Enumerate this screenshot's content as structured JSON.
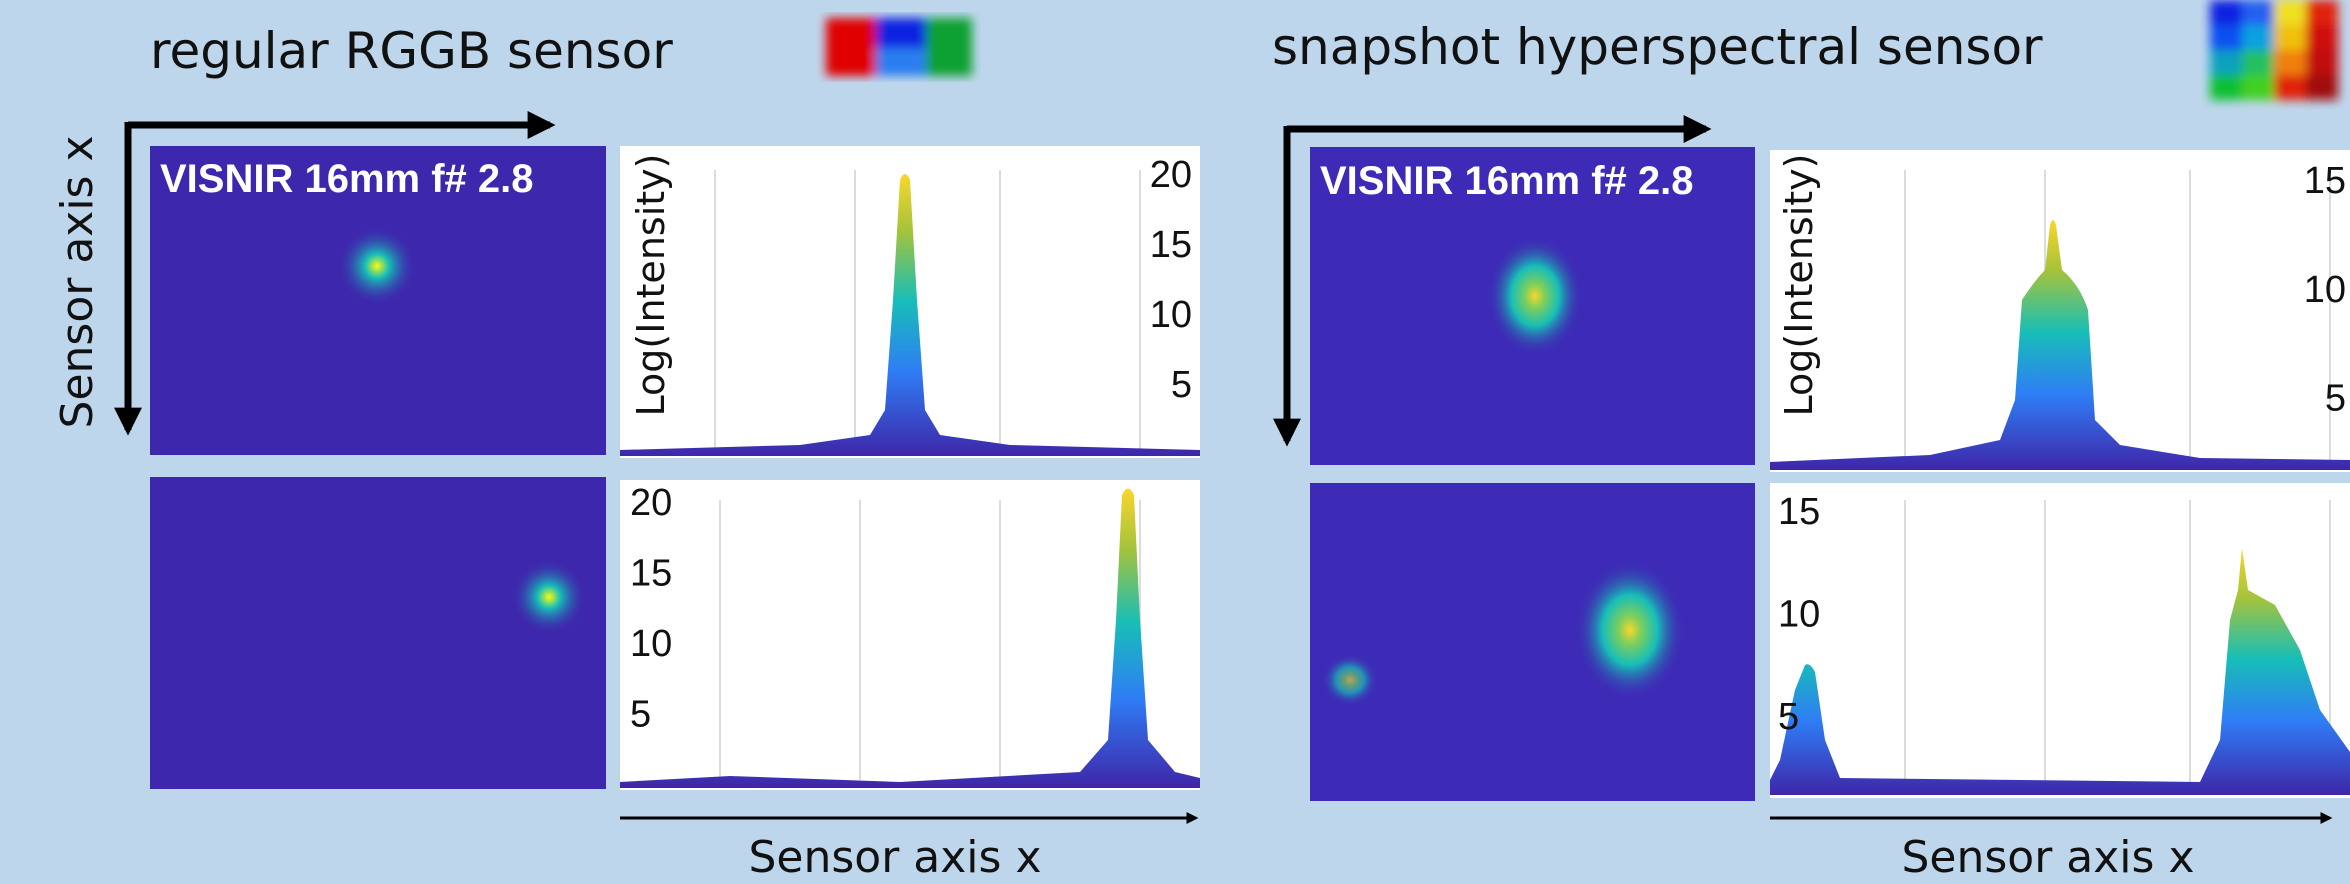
{
  "panels": [
    {
      "title": "regular RGGB sensor",
      "axis_label": "Sensor axis x",
      "image_label": "VISNIR 16mm f# 2.8",
      "plots": [
        {
          "y_label": "Log(Intensity)",
          "ticks": [
            20,
            15,
            10,
            5
          ]
        },
        {
          "ticks": [
            20,
            15,
            10,
            5
          ]
        }
      ],
      "x_label": "Sensor axis x"
    },
    {
      "title": "snapshot hyperspectral sensor",
      "image_label": "VISNIR 16mm f# 2.8",
      "plots": [
        {
          "y_label": "Log(Intensity)",
          "ticks": [
            15,
            10,
            5
          ]
        },
        {
          "ticks": [
            15,
            10,
            5
          ]
        }
      ],
      "x_label": "Sensor axis x"
    }
  ]
}
